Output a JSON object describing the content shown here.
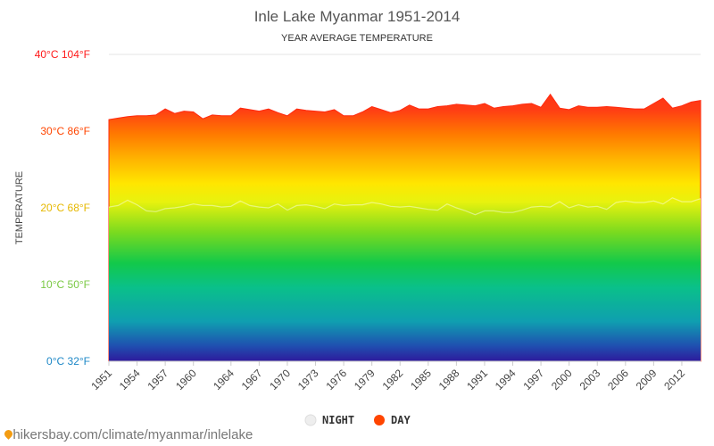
{
  "chart_data": {
    "type": "area",
    "title": "Inle Lake Myanmar 1951-2014",
    "subtitle": "YEAR AVERAGE TEMPERATURE",
    "ylabel": "TEMPERATURE",
    "xlabel": "",
    "ylim": [
      0,
      40
    ],
    "xlim": [
      1951,
      2014
    ],
    "grid": true,
    "legend_position": "bottom-center",
    "y_ticks": [
      {
        "value": 0,
        "label": "0°C 32°F",
        "color": "#1e88c7"
      },
      {
        "value": 10,
        "label": "10°C 50°F",
        "color": "#7ac943"
      },
      {
        "value": 20,
        "label": "20°C 68°F",
        "color": "#e6b800"
      },
      {
        "value": 30,
        "label": "30°C 86°F",
        "color": "#ff4500"
      },
      {
        "value": 40,
        "label": "40°C 104°F",
        "color": "#ff1a1a"
      }
    ],
    "x_ticks": [
      "1951",
      "1954",
      "1957",
      "1960",
      "1964",
      "1967",
      "1970",
      "1973",
      "1976",
      "1979",
      "1982",
      "1985",
      "1988",
      "1991",
      "1994",
      "1997",
      "2000",
      "2003",
      "2006",
      "2009",
      "2012"
    ],
    "x": [
      1951,
      1952,
      1953,
      1954,
      1955,
      1956,
      1957,
      1958,
      1959,
      1960,
      1961,
      1962,
      1963,
      1964,
      1965,
      1966,
      1967,
      1968,
      1969,
      1970,
      1971,
      1972,
      1973,
      1974,
      1975,
      1976,
      1977,
      1978,
      1979,
      1980,
      1981,
      1982,
      1983,
      1984,
      1985,
      1986,
      1987,
      1988,
      1989,
      1990,
      1991,
      1992,
      1993,
      1994,
      1995,
      1996,
      1997,
      1998,
      1999,
      2000,
      2001,
      2002,
      2003,
      2004,
      2005,
      2006,
      2007,
      2008,
      2009,
      2010,
      2011,
      2012,
      2013,
      2014
    ],
    "series": [
      {
        "name": "DAY",
        "color": "#ff4500",
        "values": [
          31.5,
          31.7,
          31.9,
          32.0,
          32.0,
          32.1,
          32.9,
          32.3,
          32.6,
          32.5,
          31.6,
          32.1,
          32.0,
          32.0,
          33.0,
          32.8,
          32.6,
          32.9,
          32.4,
          32.0,
          32.9,
          32.7,
          32.6,
          32.5,
          32.8,
          32.0,
          32.0,
          32.5,
          33.2,
          32.8,
          32.4,
          32.7,
          33.4,
          32.9,
          32.9,
          33.2,
          33.3,
          33.5,
          33.4,
          33.3,
          33.6,
          33.0,
          33.2,
          33.3,
          33.5,
          33.6,
          33.1,
          34.8,
          33.0,
          32.8,
          33.3,
          33.1,
          33.1,
          33.2,
          33.1,
          33.0,
          32.9,
          32.9,
          33.6,
          34.3,
          33.0,
          33.3,
          33.8,
          34.0
        ]
      },
      {
        "name": "NIGHT",
        "color": "#eeeeee",
        "values": [
          20.1,
          20.3,
          21.0,
          20.4,
          19.6,
          19.5,
          19.9,
          20.0,
          20.2,
          20.5,
          20.3,
          20.3,
          20.1,
          20.2,
          20.9,
          20.3,
          20.1,
          20.0,
          20.5,
          19.7,
          20.3,
          20.4,
          20.2,
          19.9,
          20.5,
          20.3,
          20.4,
          20.4,
          20.7,
          20.5,
          20.2,
          20.1,
          20.2,
          20.0,
          19.8,
          19.7,
          20.5,
          20.0,
          19.6,
          19.1,
          19.6,
          19.6,
          19.4,
          19.4,
          19.7,
          20.1,
          20.2,
          20.1,
          20.8,
          20.0,
          20.4,
          20.1,
          20.2,
          19.8,
          20.7,
          20.9,
          20.7,
          20.7,
          20.9,
          20.5,
          21.3,
          20.8,
          20.8,
          21.2
        ]
      }
    ]
  },
  "legend": {
    "items": [
      {
        "label": "NIGHT",
        "color": "#eeeeee"
      },
      {
        "label": "DAY",
        "color": "#ff4500"
      }
    ]
  },
  "source": {
    "text": "hikersbay.com/climate/myanmar/inlelake"
  }
}
